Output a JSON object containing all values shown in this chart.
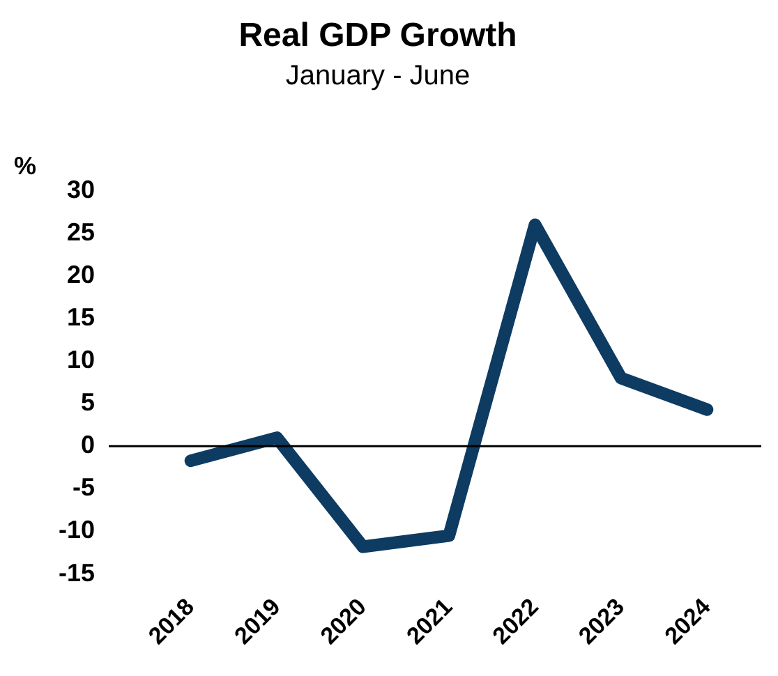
{
  "chart_data": {
    "type": "line",
    "title": "Real GDP Growth",
    "subtitle": "January - June",
    "ylabel": "%",
    "categories": [
      "2018",
      "2019",
      "2020",
      "2021",
      "2022",
      "2023",
      "2024"
    ],
    "series": [
      {
        "color": "#0d3b62",
        "values": [
          -1.7,
          1,
          -11.8,
          -10.5,
          26,
          8,
          4.3
        ]
      }
    ],
    "ylim": [
      -15,
      30
    ],
    "yticks": [
      -15,
      -10,
      -5,
      0,
      5,
      10,
      15,
      20,
      25,
      30
    ],
    "ref_lines": [
      {
        "axis": "y",
        "value": 0,
        "color": "#000000"
      }
    ],
    "grid": false,
    "legend": false,
    "marker": "none",
    "line_style": "solid"
  }
}
